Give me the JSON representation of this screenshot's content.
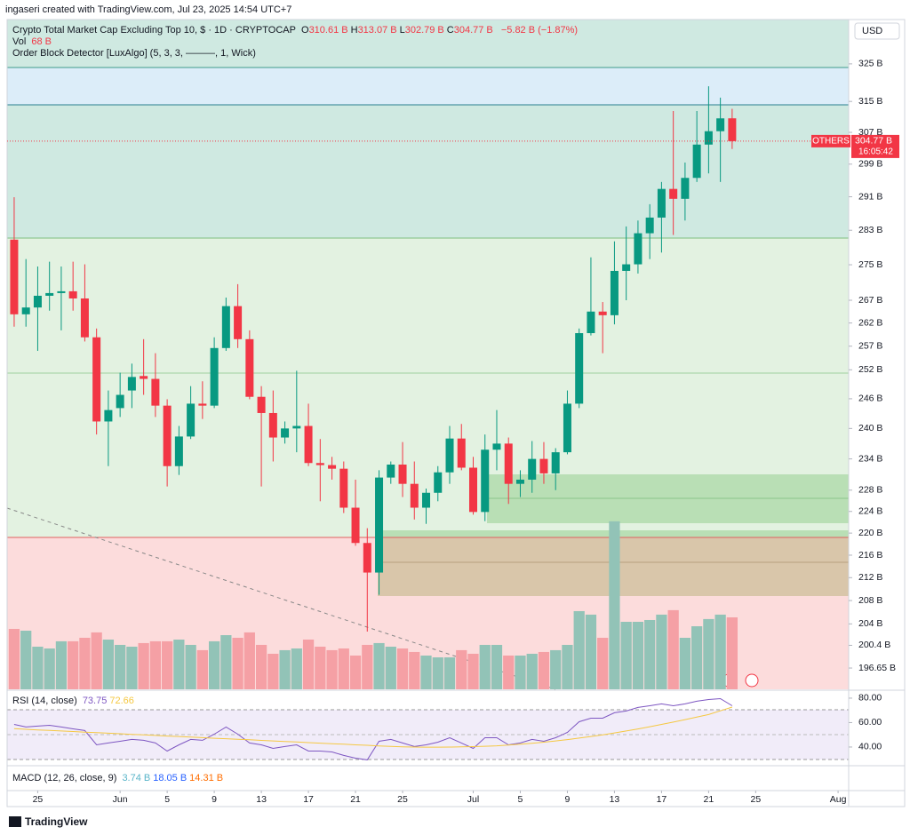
{
  "header": {
    "credit": "ingaseri created with TradingView.com, Jul 23, 2025 14:54 UTC+7",
    "title": "Crypto Total Market Cap Excluding Top 10, $ · 1D · CRYPTOCAP",
    "ohlc": [
      {
        "key": "O",
        "label": "310.61 B"
      },
      {
        "key": "H",
        "label": "313.07 B"
      },
      {
        "key": "L",
        "label": "302.79 B"
      },
      {
        "key": "C",
        "label": "304.77 B"
      }
    ],
    "change": "−5.82 B (−1.87%)",
    "volume_key": "Vol",
    "indicator": "Order Block Detector [LuxAlgo] (5, 3, 3, ———, 1, Wick)"
  },
  "currency": "USD",
  "price_tag": {
    "symbol": "OTHERS",
    "price": "304.77 B",
    "countdown": "16:05:42"
  },
  "footer": "TradingView",
  "chart_data": [
    {
      "type": "candlestick",
      "x": [
        0,
        1,
        2,
        3,
        4,
        5,
        6,
        7,
        8,
        9,
        10,
        11,
        12,
        13,
        14,
        15,
        16,
        17,
        18,
        19,
        20,
        21,
        22,
        23,
        24,
        25,
        26,
        27,
        28,
        29,
        30,
        31,
        32,
        33,
        34,
        35,
        36,
        37,
        38,
        39,
        40,
        41,
        42,
        43,
        44,
        45,
        46,
        47,
        48,
        49,
        50,
        51,
        52,
        53,
        54,
        55,
        56,
        57,
        58,
        59,
        60,
        61
      ],
      "open": [
        280.8,
        263.9,
        265.4,
        268.0,
        268.6,
        269.0,
        267.4,
        258.9,
        241.4,
        244.1,
        247.7,
        250.7,
        250.1,
        244.6,
        232.6,
        238.4,
        245.0,
        244.6,
        256.6,
        265.7,
        258.5,
        246.4,
        243.1,
        238.2,
        240.0,
        240.5,
        233.2,
        232.8,
        232.1,
        224.7,
        218.2,
        212.9,
        230.4,
        232.9,
        229.2,
        224.7,
        227.5,
        231.4,
        238.0,
        232.3,
        223.9,
        235.8,
        237.0,
        229.2,
        230.0,
        234.0,
        231.2,
        235.3,
        245.0,
        259.8,
        264.5,
        263.7,
        273.6,
        275.1,
        282.3,
        286.0,
        292.9,
        290.5,
        295.6,
        303.9,
        307.3,
        310.61
      ],
      "high": [
        290.9,
        276.3,
        274.6,
        275.7,
        274.6,
        275.7,
        275.1,
        260.8,
        247.7,
        251.4,
        253.3,
        258.5,
        255.5,
        245.9,
        240.5,
        248.6,
        249.6,
        258.9,
        267.6,
        270.6,
        260.4,
        248.6,
        247.7,
        241.4,
        251.8,
        245.0,
        237.9,
        234.4,
        233.5,
        230.0,
        220.9,
        231.8,
        233.5,
        237.3,
        233.5,
        228.3,
        232.6,
        240.5,
        240.9,
        234.4,
        238.8,
        243.7,
        238.2,
        231.8,
        237.5,
        237.3,
        236.1,
        247.7,
        260.8,
        276.7,
        266.6,
        280.4,
        283.9,
        285.3,
        289.2,
        294.6,
        312.5,
        299.4,
        312.5,
        319.0,
        316.0,
        313.07
      ],
      "low": [
        261.2,
        261.2,
        256.0,
        264.7,
        260.4,
        264.7,
        258.0,
        238.8,
        232.6,
        242.3,
        244.1,
        246.8,
        242.3,
        228.7,
        230.9,
        237.9,
        241.9,
        244.1,
        256.0,
        256.6,
        245.9,
        228.7,
        233.5,
        237.0,
        235.3,
        232.6,
        225.9,
        230.0,
        223.7,
        217.7,
        202.7,
        209.0,
        229.2,
        226.7,
        222.5,
        221.7,
        225.9,
        229.2,
        231.8,
        223.4,
        222.2,
        231.8,
        225.4,
        226.7,
        227.5,
        229.2,
        228.0,
        234.9,
        244.1,
        259.3,
        255.5,
        261.7,
        267.0,
        273.0,
        276.3,
        277.8,
        281.9,
        285.3,
        294.6,
        296.7,
        294.6,
        302.79
      ],
      "close": [
        263.9,
        265.4,
        268.0,
        268.6,
        269.0,
        267.4,
        258.9,
        241.4,
        243.7,
        246.8,
        250.5,
        250.1,
        244.6,
        232.6,
        238.4,
        245.0,
        244.6,
        256.6,
        265.7,
        258.5,
        246.4,
        243.1,
        238.2,
        240.0,
        240.5,
        233.2,
        232.8,
        232.1,
        224.7,
        218.2,
        212.9,
        230.4,
        232.9,
        229.2,
        224.7,
        227.5,
        231.4,
        238.0,
        232.3,
        223.9,
        235.8,
        237.0,
        229.2,
        230.0,
        234.0,
        231.2,
        235.3,
        245.0,
        259.8,
        264.5,
        263.7,
        273.6,
        275.1,
        282.3,
        286.0,
        292.9,
        290.5,
        295.6,
        303.9,
        307.3,
        310.6,
        304.77
      ],
      "volume": [
        57.1,
        55.4,
        40.3,
        38.6,
        45.4,
        45.4,
        48.7,
        53.8,
        47.0,
        42.0,
        40.3,
        43.7,
        45.4,
        45.4,
        47.0,
        42.0,
        37.0,
        45.4,
        51.2,
        48.7,
        53.8,
        42.0,
        33.6,
        37.0,
        38.6,
        47.0,
        40.3,
        37.0,
        38.6,
        31.9,
        42.0,
        43.7,
        40.3,
        38.6,
        35.3,
        31.9,
        30.2,
        30.2,
        37.0,
        33.6,
        42.0,
        42.0,
        31.9,
        31.9,
        33.6,
        35.3,
        37.0,
        42.0,
        73.9,
        70.6,
        48.7,
        158.8,
        63.8,
        63.8,
        65.5,
        70.6,
        74.8,
        48.7,
        59.6,
        66.4,
        70.6,
        68
      ],
      "volume_label": "68 B",
      "volume_ylim": [
        0,
        633
      ],
      "up_color": "#089981",
      "down_color": "#f23645",
      "volume_up_color": "#92c3b7",
      "volume_down_color": "#f5a0a5",
      "log_scale": true,
      "ylim": [
        193.2,
        337.2
      ],
      "yticks": [
        {
          "value": 325,
          "label": "325 B"
        },
        {
          "value": 315,
          "label": "315 B"
        },
        {
          "value": 307,
          "label": "307 B"
        },
        {
          "value": 299,
          "label": "299 B"
        },
        {
          "value": 291,
          "label": "291 B"
        },
        {
          "value": 283,
          "label": "283 B"
        },
        {
          "value": 275,
          "label": "275 B"
        },
        {
          "value": 267,
          "label": "267 B"
        },
        {
          "value": 262,
          "label": "262 B"
        },
        {
          "value": 257,
          "label": "257 B"
        },
        {
          "value": 252,
          "label": "252 B"
        },
        {
          "value": 246,
          "label": "246 B"
        },
        {
          "value": 240,
          "label": "240 B"
        },
        {
          "value": 234,
          "label": "234 B"
        },
        {
          "value": 228,
          "label": "228 B"
        },
        {
          "value": 224,
          "label": "224 B"
        },
        {
          "value": 220,
          "label": "220 B"
        },
        {
          "value": 216,
          "label": "216 B"
        },
        {
          "value": 212,
          "label": "212 B"
        },
        {
          "value": 208,
          "label": "208 B"
        },
        {
          "value": 204,
          "label": "204 B"
        },
        {
          "value": 200.4,
          "label": "200.4 B"
        },
        {
          "value": 196.65,
          "label": "196.65 B"
        }
      ],
      "xlim": [
        -0.6,
        70.9
      ],
      "xticks": [
        {
          "value": 2,
          "label": "25"
        },
        {
          "value": 9,
          "label": "Jun"
        },
        {
          "value": 13,
          "label": "5"
        },
        {
          "value": 17,
          "label": "9"
        },
        {
          "value": 21,
          "label": "13"
        },
        {
          "value": 25,
          "label": "17"
        },
        {
          "value": 29,
          "label": "21"
        },
        {
          "value": 33,
          "label": "25"
        },
        {
          "value": 39,
          "label": "Jul"
        },
        {
          "value": 43,
          "label": "5"
        },
        {
          "value": 47,
          "label": "9"
        },
        {
          "value": 51,
          "label": "13"
        },
        {
          "value": 55,
          "label": "17"
        },
        {
          "value": 59,
          "label": "21"
        },
        {
          "value": 63,
          "label": "25"
        },
        {
          "value": 70,
          "label": "Aug"
        }
      ]
    },
    {
      "type": "line",
      "title": "RSI (14, close)",
      "series": [
        {
          "color": "#7e57c2",
          "value_label": "73.75",
          "values": [
            58.5,
            56.4,
            57.1,
            57.8,
            56.4,
            54.9,
            53.5,
            41.8,
            43.3,
            44.7,
            46.2,
            45.5,
            43.3,
            36.7,
            41.8,
            46.2,
            45.5,
            50.5,
            56.4,
            50.5,
            43.3,
            41.8,
            38.9,
            40.4,
            41.8,
            36.7,
            36.7,
            36.0,
            33.1,
            30.9,
            29.5,
            44.7,
            46.2,
            43.3,
            40.4,
            41.8,
            44.0,
            47.6,
            43.3,
            38.9,
            47.6,
            47.6,
            41.8,
            43.3,
            46.2,
            44.7,
            47.6,
            52.0,
            60.7,
            63.6,
            63.6,
            68.0,
            69.5,
            72.4,
            73.8,
            75.3,
            73.8,
            75.3,
            77.5,
            78.9,
            79.6,
            73.75
          ]
        },
        {
          "color": "#f5c842",
          "value_label": "72.66",
          "values": [
            55,
            54.5,
            54,
            53.6,
            53.1,
            52.7,
            52.2,
            51.8,
            51.3,
            50.9,
            50.4,
            50,
            49.5,
            49,
            48.6,
            48.1,
            47.7,
            47.2,
            46.8,
            46.3,
            45.9,
            45.4,
            45,
            44.5,
            44.1,
            43.6,
            43.2,
            42.7,
            42.3,
            41.8,
            41.4,
            40.9,
            40.5,
            40.2,
            40,
            39.9,
            39.9,
            40,
            40.1,
            40.3,
            40.6,
            41,
            41.6,
            42.3,
            43.1,
            44.0,
            45.0,
            46.1,
            47.3,
            48.6,
            50.0,
            51.5,
            53.1,
            54.8,
            56.6,
            58.5,
            60.4,
            62.4,
            64.5,
            66.6,
            69.6,
            72.66
          ]
        }
      ],
      "ylim": [
        24.7,
        86.5
      ],
      "yticks": [
        {
          "value": 80,
          "label": "80.00"
        },
        {
          "value": 60,
          "label": "60.00"
        },
        {
          "value": 40,
          "label": "40.00"
        }
      ]
    },
    {
      "type": "macd",
      "title": "MACD (12, 26, close, 9)",
      "legend": [
        {
          "label": "3.74 B",
          "color": "#5ab5c9"
        },
        {
          "label": "18.05 B",
          "color": "#2962ff"
        },
        {
          "label": "14.31 B",
          "color": "#ff6d00"
        }
      ]
    }
  ]
}
